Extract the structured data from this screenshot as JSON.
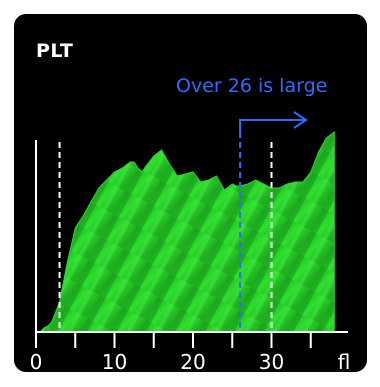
{
  "title": "PLT",
  "annotation": "Over 26 is large",
  "colors": {
    "background": "#000000",
    "histogram": "#22cc22",
    "accent": "#2f6bff",
    "axis": "#ffffff"
  },
  "chart_data": {
    "type": "area",
    "title": "PLT",
    "xlabel": "",
    "ylabel": "",
    "unit_label": "fl",
    "xlim": [
      0,
      38
    ],
    "x_ticks": [
      0,
      5,
      10,
      15,
      20,
      25,
      30,
      35
    ],
    "x_tick_labels": [
      {
        "x": 0,
        "label": "0"
      },
      {
        "x": 10,
        "label": "10"
      },
      {
        "x": 20,
        "label": "20"
      },
      {
        "x": 30,
        "label": "30"
      }
    ],
    "reference_lines": [
      {
        "x": 3,
        "style": "dashed",
        "color": "#ffffff"
      },
      {
        "x": 26,
        "style": "dashed",
        "color": "#2f6bff"
      },
      {
        "x": 30,
        "style": "dashed",
        "color": "#ffffff"
      }
    ],
    "annotation_arrow": {
      "from_x": 26,
      "direction": "right"
    },
    "series": [
      {
        "x": [
          0.5,
          1,
          1.5,
          2,
          3,
          4,
          5,
          6,
          7,
          8,
          9,
          10,
          11,
          12,
          12.5,
          13,
          13.5,
          14,
          15,
          16,
          17,
          18,
          19,
          20,
          21,
          22,
          23,
          24,
          25,
          25.5,
          26,
          27,
          28,
          29,
          30,
          31,
          32,
          33,
          34,
          35,
          36,
          37,
          38
        ],
        "values": [
          0,
          2,
          3,
          5,
          15,
          35,
          52,
          58,
          65,
          72,
          76,
          80,
          82,
          85,
          85,
          82,
          80,
          83,
          88,
          91,
          84,
          78,
          79,
          80,
          75,
          76,
          78,
          71,
          74,
          73,
          73,
          74,
          76,
          74,
          72,
          72,
          74,
          75,
          75,
          80,
          90,
          97,
          100
        ]
      }
    ],
    "ylim": [
      0,
      100
    ]
  }
}
